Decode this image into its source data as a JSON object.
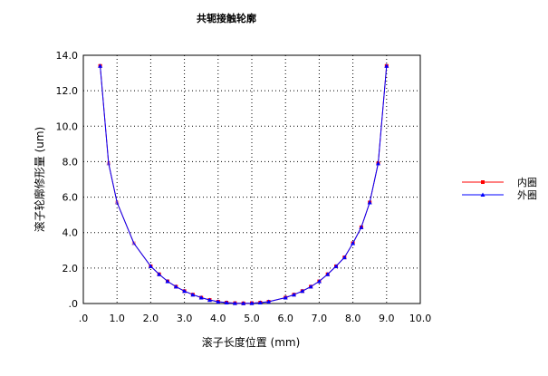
{
  "chart_data": {
    "type": "line",
    "title": "共轭接触轮廓",
    "xlabel": "滚子长度位置 (mm)",
    "ylabel": "滚子轮廓修形量 (um)",
    "xlim": [
      0,
      10
    ],
    "ylim": [
      0,
      14
    ],
    "x_tick_labels": [
      ".0",
      "1.0",
      "2.0",
      "3.0",
      "4.0",
      "5.0",
      "6.0",
      "7.0",
      "8.0",
      "9.0",
      "10.0"
    ],
    "y_tick_labels": [
      ".0",
      "2.0",
      "4.0",
      "6.0",
      "8.0",
      "10.0",
      "12.0",
      "14.0"
    ],
    "grid": true,
    "legend_position": "right",
    "series": [
      {
        "name": "内圈",
        "color": "#ff0000",
        "marker": "square",
        "x": [
          0.5,
          0.75,
          1.0,
          1.5,
          2.0,
          2.25,
          2.5,
          2.75,
          3.0,
          3.25,
          3.5,
          3.75,
          4.0,
          4.25,
          4.5,
          4.75,
          5.0,
          5.25,
          5.5,
          6.0,
          6.25,
          6.5,
          6.75,
          7.0,
          7.25,
          7.5,
          7.75,
          8.0,
          8.25,
          8.5,
          8.75,
          9.0
        ],
        "y": [
          13.4,
          7.9,
          5.7,
          3.4,
          2.1,
          1.65,
          1.25,
          0.95,
          0.7,
          0.5,
          0.33,
          0.2,
          0.1,
          0.05,
          0.02,
          0.01,
          0.02,
          0.05,
          0.1,
          0.33,
          0.5,
          0.7,
          0.95,
          1.25,
          1.65,
          2.1,
          2.6,
          3.4,
          4.3,
          5.7,
          7.9,
          13.4
        ]
      },
      {
        "name": "外圈",
        "color": "#0000ff",
        "marker": "triangle",
        "x": [
          0.5,
          0.75,
          1.0,
          1.5,
          2.0,
          2.25,
          2.5,
          2.75,
          3.0,
          3.25,
          3.5,
          3.75,
          4.0,
          4.25,
          4.5,
          4.75,
          5.0,
          5.25,
          5.5,
          6.0,
          6.25,
          6.5,
          6.75,
          7.0,
          7.25,
          7.5,
          7.75,
          8.0,
          8.25,
          8.5,
          8.75,
          9.0
        ],
        "y": [
          13.4,
          7.9,
          5.7,
          3.4,
          2.1,
          1.65,
          1.25,
          0.95,
          0.7,
          0.5,
          0.33,
          0.2,
          0.1,
          0.05,
          0.02,
          0.01,
          0.02,
          0.05,
          0.1,
          0.33,
          0.5,
          0.7,
          0.95,
          1.25,
          1.65,
          2.1,
          2.6,
          3.4,
          4.3,
          5.7,
          7.9,
          13.4
        ]
      }
    ]
  }
}
